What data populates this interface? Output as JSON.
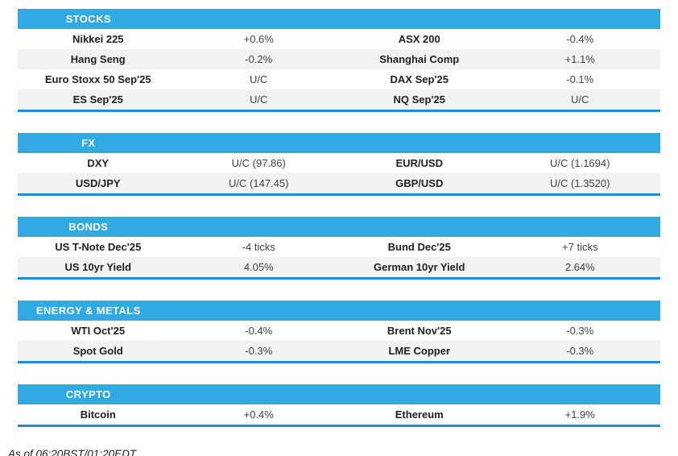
{
  "colors": {
    "header_bg": "#31a9e3",
    "section_border": "#1e8ed9",
    "row_alt_bg": "#f2f2f2",
    "row_bg": "#ffffff",
    "header_text": "#ffffff",
    "label_text": "#1f1f1f",
    "value_text": "#414141"
  },
  "sections": [
    {
      "title": "STOCKS",
      "rows": [
        {
          "left_label": "Nikkei 225",
          "left_value": "+0.6%",
          "right_label": "ASX 200",
          "right_value": "-0.4%"
        },
        {
          "left_label": "Hang Seng",
          "left_value": "-0.2%",
          "right_label": "Shanghai Comp",
          "right_value": "+1.1%"
        },
        {
          "left_label": "Euro Stoxx 50 Sep'25",
          "left_value": "U/C",
          "right_label": "DAX Sep'25",
          "right_value": "-0.1%"
        },
        {
          "left_label": "ES Sep'25",
          "left_value": "U/C",
          "right_label": "NQ Sep'25",
          "right_value": "U/C"
        }
      ]
    },
    {
      "title": "FX",
      "rows": [
        {
          "left_label": "DXY",
          "left_value": "U/C (97.86)",
          "right_label": "EUR/USD",
          "right_value": "U/C (1.1694)"
        },
        {
          "left_label": "USD/JPY",
          "left_value": "U/C (147.45)",
          "right_label": "GBP/USD",
          "right_value": "U/C (1.3520)"
        }
      ]
    },
    {
      "title": "BONDS",
      "rows": [
        {
          "left_label": "US T-Note Dec'25",
          "left_value": "-4 ticks",
          "right_label": "Bund Dec'25",
          "right_value": "+7 ticks"
        },
        {
          "left_label": "US 10yr Yield",
          "left_value": "4.05%",
          "right_label": "German 10yr Yield",
          "right_value": "2.64%"
        }
      ]
    },
    {
      "title": "ENERGY & METALS",
      "rows": [
        {
          "left_label": "WTI Oct'25",
          "left_value": "-0.4%",
          "right_label": "Brent Nov'25",
          "right_value": "-0.3%"
        },
        {
          "left_label": "Spot Gold",
          "left_value": "-0.3%",
          "right_label": "LME Copper",
          "right_value": "-0.3%"
        }
      ]
    },
    {
      "title": "CRYPTO",
      "rows": [
        {
          "left_label": "Bitcoin",
          "left_value": "+0.4%",
          "right_label": "Ethereum",
          "right_value": "+1.9%"
        }
      ]
    }
  ],
  "footer": {
    "as_of": "As of 06:20BST/01:20EDT"
  }
}
